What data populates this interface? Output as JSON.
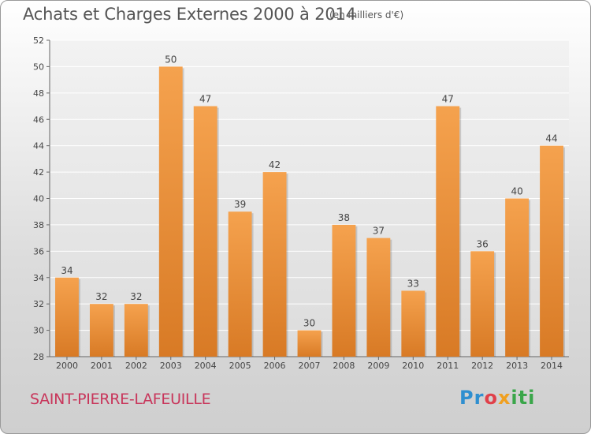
{
  "chart_data": {
    "type": "bar",
    "title": "Achats et Charges Externes 2000 à 2014",
    "subtitle": "(en milliers d'€)",
    "categories": [
      "2000",
      "2001",
      "2002",
      "2003",
      "2004",
      "2005",
      "2006",
      "2007",
      "2008",
      "2009",
      "2010",
      "2011",
      "2012",
      "2013",
      "2014"
    ],
    "values": [
      34,
      32,
      32,
      50,
      47,
      39,
      42,
      30,
      38,
      37,
      33,
      47,
      36,
      40,
      44
    ],
    "ylim": [
      28,
      52
    ],
    "yticks": [
      28,
      30,
      32,
      34,
      36,
      38,
      40,
      42,
      44,
      46,
      48,
      50,
      52
    ],
    "grid": true,
    "bar_color_top": "#f5a24e",
    "bar_color_bottom": "#d87a25"
  },
  "footer": {
    "place": "SAINT-PIERRE-LAFEUILLE",
    "logo": "Proxiti"
  }
}
